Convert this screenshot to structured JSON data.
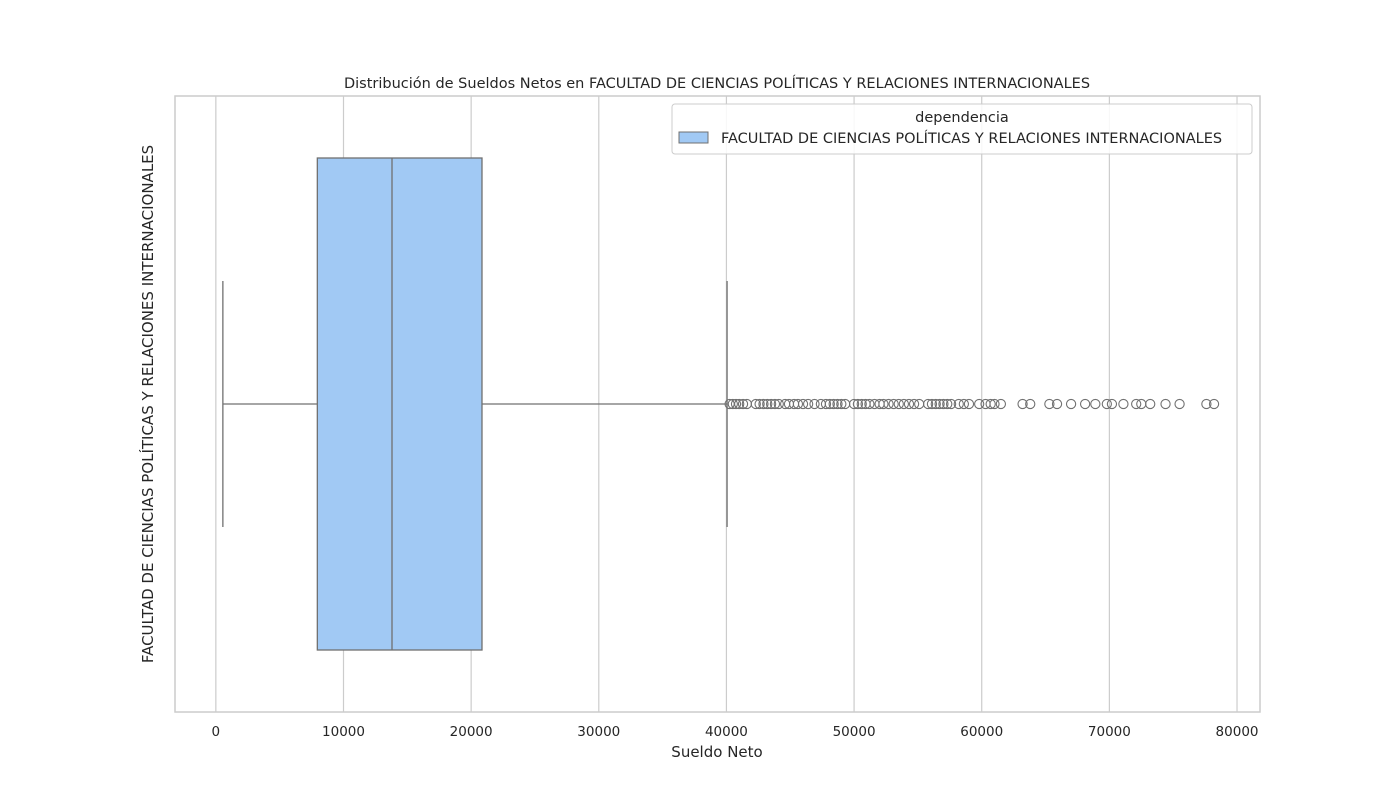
{
  "chart_data": {
    "type": "boxplot",
    "orientation": "horizontal",
    "title": "Distribución de Sueldos Netos en FACULTAD DE CIENCIAS POLÍTICAS Y RELACIONES INTERNACIONALES",
    "xlabel": "Sueldo Neto",
    "ylabel": "FACULTAD DE CIENCIAS POLÍTICAS Y RELACIONES INTERNACIONALES",
    "xlim": [
      -3200,
      81800
    ],
    "xticks": [
      0,
      10000,
      20000,
      30000,
      40000,
      50000,
      60000,
      70000,
      80000
    ],
    "grid": "vertical",
    "legend": {
      "title": "dependencia",
      "placement": "top-right",
      "entries": [
        "FACULTAD DE CIENCIAS POLÍTICAS Y RELACIONES INTERNACIONALES"
      ]
    },
    "series": [
      {
        "name": "FACULTAD DE CIENCIAS POLÍTICAS Y RELACIONES INTERNACIONALES",
        "color": "#a1c9f4",
        "whisker_low": 550,
        "q1": 7950,
        "median": 13800,
        "q3": 20850,
        "whisker_high": 40050,
        "outliers": [
          40250,
          40500,
          40750,
          41000,
          41300,
          41600,
          42300,
          42600,
          42900,
          43200,
          43500,
          43800,
          44100,
          44600,
          44900,
          45300,
          45600,
          46000,
          46400,
          46900,
          47400,
          47800,
          48100,
          48400,
          48700,
          49000,
          49300,
          50000,
          50300,
          50600,
          50900,
          51200,
          51600,
          52000,
          52300,
          52700,
          53100,
          53500,
          53900,
          54300,
          54700,
          55100,
          55800,
          56100,
          56400,
          56700,
          57000,
          57300,
          57600,
          58200,
          58600,
          59000,
          59800,
          60300,
          60700,
          61000,
          61500,
          63200,
          63800,
          65300,
          65900,
          67000,
          68100,
          68900,
          69800,
          70200,
          71100,
          72100,
          72500,
          73200,
          74400,
          75500,
          77600,
          78200
        ]
      }
    ]
  }
}
